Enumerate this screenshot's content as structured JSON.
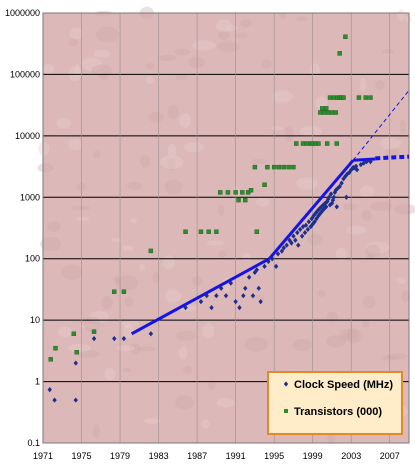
{
  "chart_data": {
    "type": "scatter",
    "yscale": "log",
    "xlim": [
      1971,
      2009
    ],
    "ylim": [
      0.1,
      1000000
    ],
    "xticks": [
      "1971",
      "1975",
      "1979",
      "1983",
      "1987",
      "1991",
      "1995",
      "1999",
      "2003",
      "2007"
    ],
    "yticks": [
      "0.1",
      "1",
      "10",
      "100",
      "1000",
      "10000",
      "100000",
      "1000000"
    ],
    "legend_position": "bottom-right",
    "grid": true,
    "colors": {
      "plot_bg": "#dcb8b8",
      "grid": "#000000",
      "clock": "#1c2f8c",
      "transistor": "#2e8b2e",
      "trend": "#1414e6",
      "legend_bg": "#ffecc8",
      "legend_border": "#e08a2c"
    },
    "series": [
      {
        "name": "Clock Speed (MHz)",
        "marker": "diamond",
        "color": "#1c2f8c",
        "points": [
          [
            1971.7,
            0.74
          ],
          [
            1972.2,
            0.5
          ],
          [
            1974.4,
            2
          ],
          [
            1974.4,
            0.5
          ],
          [
            1976.3,
            5
          ],
          [
            1978.4,
            5
          ],
          [
            1979.4,
            5
          ],
          [
            1982.2,
            6
          ],
          [
            1985.8,
            16
          ],
          [
            1987.4,
            20
          ],
          [
            1988,
            25
          ],
          [
            1988.5,
            16
          ],
          [
            1989,
            25
          ],
          [
            1989.5,
            33
          ],
          [
            1990,
            25
          ],
          [
            1990.5,
            40
          ],
          [
            1991,
            20
          ],
          [
            1991.4,
            16
          ],
          [
            1991.8,
            25
          ],
          [
            1992,
            33
          ],
          [
            1992.4,
            50
          ],
          [
            1992.8,
            25
          ],
          [
            1993,
            60
          ],
          [
            1993.2,
            66
          ],
          [
            1993.4,
            33
          ],
          [
            1993.6,
            20
          ],
          [
            1994,
            75
          ],
          [
            1994.4,
            90
          ],
          [
            1994.8,
            100
          ],
          [
            1995.2,
            75
          ],
          [
            1995.4,
            120
          ],
          [
            1995.8,
            133
          ],
          [
            1996,
            150
          ],
          [
            1996.3,
            166
          ],
          [
            1996.6,
            200
          ],
          [
            1996.8,
            180
          ],
          [
            1997,
            233
          ],
          [
            1997.2,
            200
          ],
          [
            1997.4,
            266
          ],
          [
            1997.5,
            166
          ],
          [
            1997.7,
            300
          ],
          [
            1997.9,
            233
          ],
          [
            1998,
            333
          ],
          [
            1998.2,
            266
          ],
          [
            1998.3,
            350
          ],
          [
            1998.5,
            300
          ],
          [
            1998.6,
            400
          ],
          [
            1998.8,
            333
          ],
          [
            1998.9,
            450
          ],
          [
            1999,
            366
          ],
          [
            1999.1,
            500
          ],
          [
            1999.2,
            400
          ],
          [
            1999.3,
            550
          ],
          [
            1999.4,
            450
          ],
          [
            1999.5,
            600
          ],
          [
            1999.6,
            500
          ],
          [
            1999.7,
            650
          ],
          [
            1999.8,
            550
          ],
          [
            1999.9,
            700
          ],
          [
            2000,
            600
          ],
          [
            2000.1,
            750
          ],
          [
            2000.2,
            650
          ],
          [
            2000.3,
            800
          ],
          [
            2000.4,
            700
          ],
          [
            2000.5,
            850
          ],
          [
            2000.6,
            933
          ],
          [
            2000.7,
            1000
          ],
          [
            2000.8,
            750
          ],
          [
            2000.9,
            1130
          ],
          [
            2001,
            800
          ],
          [
            2001.1,
            900
          ],
          [
            2001.2,
            1000
          ],
          [
            2001.3,
            1200
          ],
          [
            2001.4,
            1300
          ],
          [
            2001.6,
            1400
          ],
          [
            2001.8,
            1500
          ],
          [
            2002,
            1700
          ],
          [
            2002.2,
            2000
          ],
          [
            2002.4,
            2200
          ],
          [
            2002.6,
            2400
          ],
          [
            2002.8,
            2530
          ],
          [
            2003,
            2800
          ],
          [
            2003.2,
            3060
          ],
          [
            2003.5,
            3200
          ],
          [
            2003.6,
            2800
          ],
          [
            2004,
            3400
          ],
          [
            2004.3,
            3600
          ],
          [
            2004.6,
            3800
          ],
          [
            2005,
            3800
          ],
          [
            2001.5,
            700
          ],
          [
            2002.5,
            1000
          ],
          [
            2003.3,
            3000
          ]
        ]
      },
      {
        "name": "Transistors (000)",
        "marker": "square",
        "color": "#2e8b2e",
        "points": [
          [
            1971.8,
            2.3
          ],
          [
            1972.3,
            3.5
          ],
          [
            1974.2,
            6
          ],
          [
            1974.5,
            3
          ],
          [
            1976.3,
            6.5
          ],
          [
            1978.4,
            29
          ],
          [
            1979.4,
            29
          ],
          [
            1982.2,
            134
          ],
          [
            1985.8,
            275
          ],
          [
            1987.4,
            275
          ],
          [
            1988.2,
            275
          ],
          [
            1989,
            275
          ],
          [
            1989.4,
            1200
          ],
          [
            1990.2,
            1200
          ],
          [
            1991,
            1200
          ],
          [
            1991.3,
            900
          ],
          [
            1991.7,
            1200
          ],
          [
            1992,
            900
          ],
          [
            1992.3,
            1200
          ],
          [
            1992.6,
            1300
          ],
          [
            1993,
            3100
          ],
          [
            1993.2,
            275
          ],
          [
            1994,
            1600
          ],
          [
            1994.3,
            3100
          ],
          [
            1995,
            3100
          ],
          [
            1995.5,
            3100
          ],
          [
            1996,
            3100
          ],
          [
            1996.5,
            3100
          ],
          [
            1997,
            3100
          ],
          [
            1997.3,
            7500
          ],
          [
            1998,
            7500
          ],
          [
            1998.4,
            7500
          ],
          [
            1998.8,
            7500
          ],
          [
            1999,
            7500
          ],
          [
            1999.3,
            7500
          ],
          [
            1999.6,
            7500
          ],
          [
            1999.8,
            24000
          ],
          [
            2000,
            28000
          ],
          [
            2000.2,
            24000
          ],
          [
            2000.4,
            28000
          ],
          [
            2000.6,
            24000
          ],
          [
            2000.8,
            42000
          ],
          [
            2001,
            24000
          ],
          [
            2001.2,
            42000
          ],
          [
            2001.4,
            24000
          ],
          [
            2001.6,
            42000
          ],
          [
            2001.8,
            42000
          ],
          [
            2002,
            42000
          ],
          [
            2002.2,
            42000
          ],
          [
            2000.5,
            7500
          ],
          [
            2001.5,
            7500
          ],
          [
            2001.8,
            220000
          ],
          [
            2002.4,
            410000
          ],
          [
            2003.8,
            42000
          ],
          [
            2004.5,
            42000
          ],
          [
            2005,
            42000
          ]
        ]
      }
    ],
    "trend_lines": [
      {
        "style": "solid",
        "points": [
          [
            1980.2,
            6
          ],
          [
            1994.5,
            100
          ]
        ]
      },
      {
        "style": "solid",
        "points": [
          [
            1994.5,
            100
          ],
          [
            2003.2,
            4000
          ]
        ]
      },
      {
        "style": "solid",
        "points": [
          [
            2003.2,
            4000
          ],
          [
            2005.5,
            4200
          ]
        ]
      },
      {
        "style": "dashed",
        "points": [
          [
            2005.5,
            4300
          ],
          [
            2009,
            4600
          ]
        ]
      },
      {
        "style": "thin-dashed",
        "points": [
          [
            2003.2,
            4000
          ],
          [
            2009,
            55000
          ]
        ]
      }
    ]
  }
}
